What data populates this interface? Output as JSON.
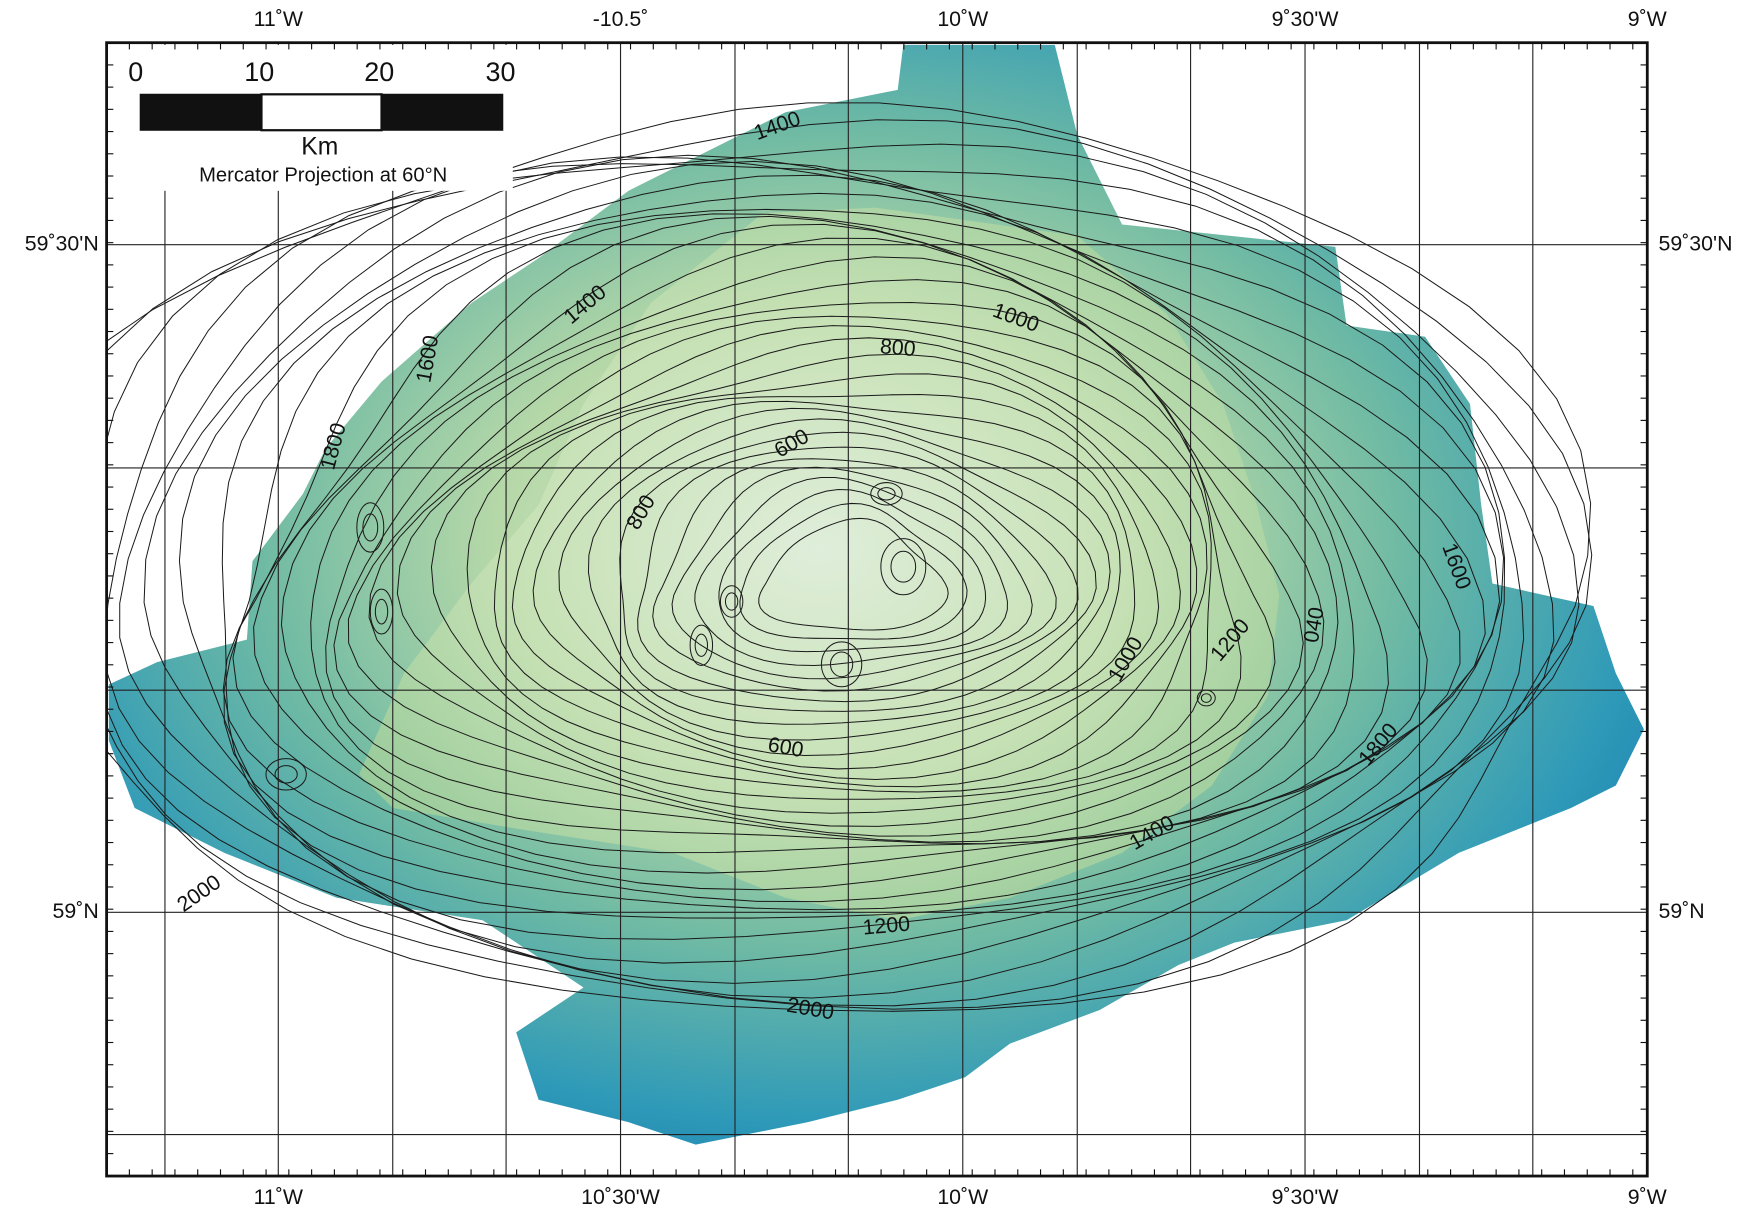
{
  "map": {
    "top_labels": [
      "11˚W",
      "-10.5˚",
      "10˚W",
      "9˚30'W",
      "9˚W"
    ],
    "bottom_labels": [
      "11˚W",
      "10˚30'W",
      "10˚W",
      "9˚30'W",
      "9˚W"
    ],
    "left_labels": [
      "59˚30'N",
      "59˚N"
    ],
    "right_labels": [
      "59˚30'N",
      "59˚N"
    ],
    "scale_bar": {
      "labels": [
        "0",
        "10",
        "20",
        "30"
      ],
      "unit": "Km",
      "projection": "Mercator Projection at 60°N"
    },
    "contour_labels": [
      "1400",
      "1400",
      "1600",
      "1800",
      "1000",
      "800",
      "600",
      "800",
      "1600",
      "1200",
      "040",
      "1000",
      "600",
      "1800",
      "1400",
      "1200",
      "2000",
      "2000"
    ]
  }
}
